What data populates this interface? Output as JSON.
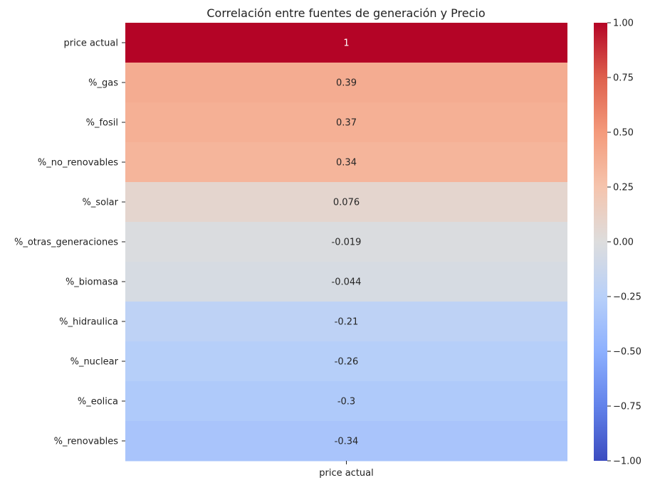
{
  "chart_data": {
    "type": "heatmap",
    "title": "Correlación entre fuentes de generación y Precio",
    "columns": [
      "price actual"
    ],
    "rows": [
      "price actual",
      "%_gas",
      "%_fosil",
      "%_no_renovables",
      "%_solar",
      "%_otras_generaciones",
      "%_biomasa",
      "%_hidraulica",
      "%_nuclear",
      "%_eolica",
      "%_renovables"
    ],
    "values": [
      1,
      0.39,
      0.37,
      0.34,
      0.076,
      -0.019,
      -0.044,
      -0.21,
      -0.26,
      -0.3,
      -0.34
    ],
    "value_labels": [
      "1",
      "0.39",
      "0.37",
      "0.34",
      "0.076",
      "-0.019",
      "-0.044",
      "-0.21",
      "-0.26",
      "-0.3",
      "-0.34"
    ],
    "colormap": "coolwarm",
    "vmin": -1,
    "vmax": 1,
    "colorbar_ticks": [
      1.0,
      0.75,
      0.5,
      0.25,
      0.0,
      -0.25,
      -0.5,
      -0.75,
      -1.0
    ],
    "colorbar_tick_labels": [
      "1.00",
      "0.75",
      "0.50",
      "0.25",
      "0.00",
      "−0.25",
      "−0.50",
      "−0.75",
      "−1.00"
    ]
  }
}
